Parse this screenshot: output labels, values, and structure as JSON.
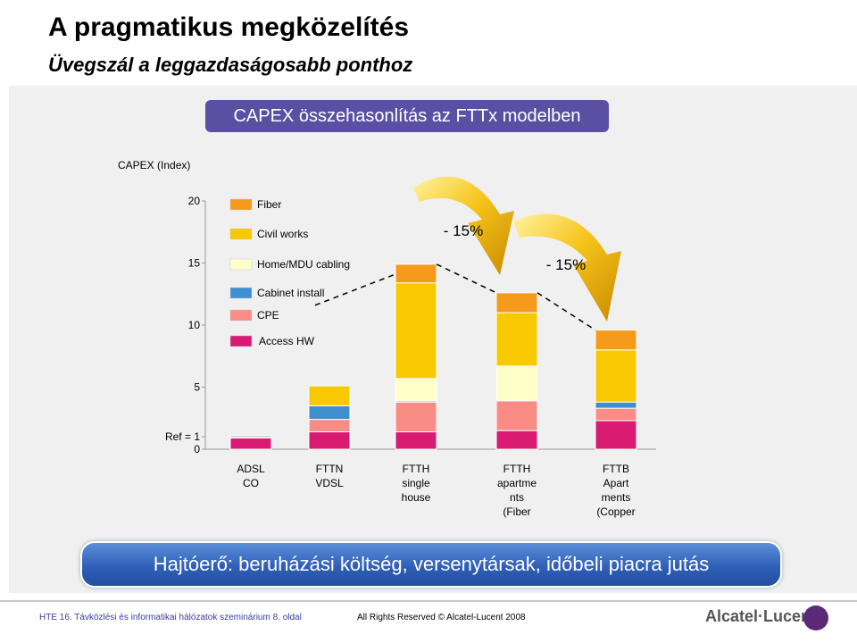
{
  "page": {
    "title": "A pragmatikus megközelítés",
    "subtitle": "Üvegszál a leggazdaságosabb ponthoz"
  },
  "chart_data": {
    "type": "bar",
    "stacked": true,
    "title": "CAPEX összehasonlítás az FTTx modelben",
    "ylabel": "CAPEX (Index)",
    "ylim": [
      0,
      20
    ],
    "yticks": [
      {
        "value": 0,
        "label": "0"
      },
      {
        "value": 1,
        "label": "Ref = 1"
      },
      {
        "value": 5,
        "label": "5"
      },
      {
        "value": 10,
        "label": "10"
      },
      {
        "value": 15,
        "label": "15"
      },
      {
        "value": 20,
        "label": "20"
      }
    ],
    "categories": [
      [
        "ADSL",
        "CO"
      ],
      [
        "FTTN",
        "VDSL"
      ],
      [
        "FTTH",
        "single",
        "house"
      ],
      [
        "FTTH",
        "apartme",
        "nts",
        "(Fiber"
      ],
      [
        "FTTB",
        "Apart",
        "ments",
        "(Copper"
      ]
    ],
    "series": [
      {
        "name": "Access HW",
        "color": "#d91a72",
        "values": [
          0.9,
          1.4,
          1.4,
          1.5,
          2.3
        ]
      },
      {
        "name": "CPE",
        "color": "#fa8c86",
        "values": [
          0.1,
          1.0,
          2.4,
          2.4,
          1.0
        ]
      },
      {
        "name": "Cabinet install",
        "color": "#3f8fd0",
        "values": [
          0.1,
          1.1,
          0.1,
          0.0,
          0.5
        ]
      },
      {
        "name": "Home/MDU cabling",
        "color": "#ffffc8",
        "values": [
          0,
          0,
          1.8,
          2.8,
          0
        ]
      },
      {
        "name": "Civil works",
        "color": "#f8c800",
        "values": [
          0,
          1.6,
          7.7,
          4.3,
          4.2
        ]
      },
      {
        "name": "Fiber",
        "color": "#f59a1a",
        "values": [
          0,
          0,
          1.5,
          1.6,
          1.6
        ]
      }
    ],
    "legend_order": [
      "Fiber",
      "Civil works",
      "Home/MDU cabling",
      "Cabinet install",
      "CPE",
      "Access HW"
    ],
    "annotations": [
      "- 15%",
      "- 15%"
    ]
  },
  "driver_text": "Hajtóerő: beruházási költség, versenytársak,  időbeli piacra jutás",
  "footer": {
    "left": "HTE 16. Távközlési és informatikai hálózatok szeminárium   8. oldal",
    "center": "All Rights Reserved © Alcatel-Lucent 2008",
    "logo": "Alcatel·Lucent"
  }
}
